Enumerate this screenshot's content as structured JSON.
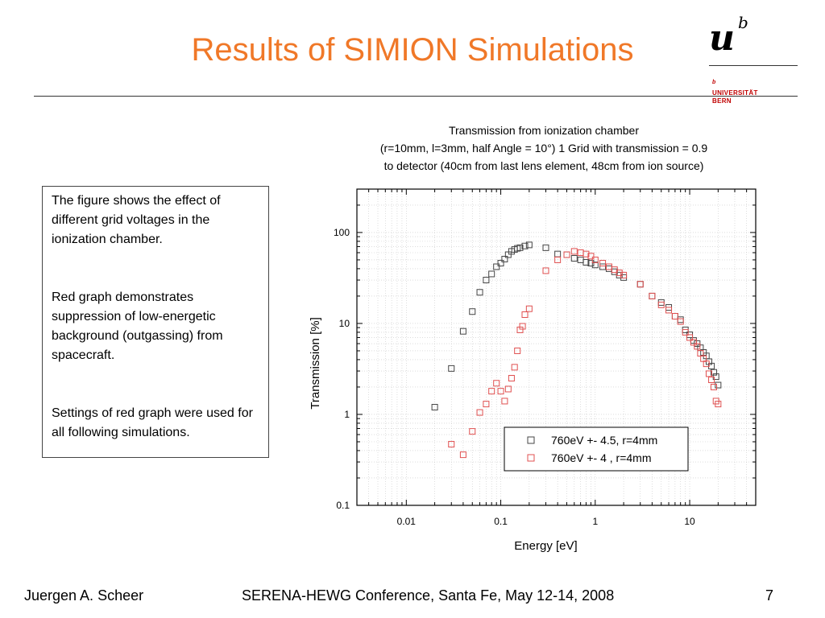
{
  "slide": {
    "title": "Results of SIMION Simulations"
  },
  "logo": {
    "mark_u": "u",
    "mark_b": "b",
    "superscript": "b",
    "line1": "UNIVERSITÄT",
    "line2": "BERN",
    "colors": {
      "text": "#c00000"
    }
  },
  "textbox": {
    "paragraphs": [
      "The figure shows the effect of different grid voltages in the ionization chamber.",
      "Red graph demonstrates suppression of low-energetic background (outgassing) from spacecraft.",
      "Settings of red graph were used for all following simulations."
    ]
  },
  "footer": {
    "author": "Juergen A. Scheer",
    "conference": "SERENA-HEWG Conference, Santa Fe, May 12-14, 2008",
    "page": "7"
  },
  "colors": {
    "title": "#f07828",
    "series1": "#444444",
    "series2": "#e05050"
  },
  "chart_data": {
    "type": "scatter",
    "title_lines": [
      "Transmission from ionization chamber",
      "(r=10mm, l=3mm, half Angle = 10°) 1 Grid with transmission = 0.9",
      "to detector (40cm from last lens element, 48cm from ion source)"
    ],
    "xlabel": "Energy [eV]",
    "ylabel": "Transmission [%]",
    "xscale": "log",
    "yscale": "log",
    "xlim": [
      0.003,
      50
    ],
    "ylim": [
      0.1,
      300
    ],
    "xticks": [
      "0.01",
      "0.1",
      "1",
      "10"
    ],
    "yticks": [
      "0.1",
      "1",
      "10",
      "100"
    ],
    "grid": true,
    "legend_position": "bottom-right",
    "series": [
      {
        "name": "760eV +- 4.5, r=4mm",
        "color": "#444444",
        "marker": "open-square",
        "points": [
          [
            0.02,
            1.2
          ],
          [
            0.03,
            3.2
          ],
          [
            0.04,
            8.2
          ],
          [
            0.05,
            13.5
          ],
          [
            0.06,
            22
          ],
          [
            0.07,
            30
          ],
          [
            0.08,
            35
          ],
          [
            0.09,
            42
          ],
          [
            0.1,
            46
          ],
          [
            0.11,
            51
          ],
          [
            0.12,
            57
          ],
          [
            0.13,
            62
          ],
          [
            0.14,
            65
          ],
          [
            0.15,
            67
          ],
          [
            0.16,
            68
          ],
          [
            0.18,
            71
          ],
          [
            0.2,
            73
          ],
          [
            0.3,
            68
          ],
          [
            0.4,
            58
          ],
          [
            0.5,
            57
          ],
          [
            0.6,
            52
          ],
          [
            0.7,
            50
          ],
          [
            0.8,
            47
          ],
          [
            0.9,
            46
          ],
          [
            1.0,
            44
          ],
          [
            1.2,
            42
          ],
          [
            1.4,
            40
          ],
          [
            1.6,
            37
          ],
          [
            1.8,
            34
          ],
          [
            2.0,
            32
          ],
          [
            3.0,
            27
          ],
          [
            4.0,
            20
          ],
          [
            5.0,
            17
          ],
          [
            6.0,
            15
          ],
          [
            7.0,
            12
          ],
          [
            8.0,
            11
          ],
          [
            9.0,
            8.5
          ],
          [
            10,
            7.5
          ],
          [
            11,
            6.5
          ],
          [
            12,
            6.0
          ],
          [
            13,
            5.4
          ],
          [
            14,
            4.8
          ],
          [
            15,
            4.4
          ],
          [
            16,
            3.8
          ],
          [
            17,
            3.4
          ],
          [
            18,
            2.9
          ],
          [
            19,
            2.6
          ],
          [
            20,
            2.1
          ]
        ]
      },
      {
        "name": "760eV +- 4  , r=4mm",
        "color": "#e05050",
        "marker": "open-square",
        "points": [
          [
            0.03,
            0.47
          ],
          [
            0.04,
            0.36
          ],
          [
            0.05,
            0.65
          ],
          [
            0.06,
            1.05
          ],
          [
            0.07,
            1.3
          ],
          [
            0.08,
            1.8
          ],
          [
            0.09,
            2.2
          ],
          [
            0.1,
            1.8
          ],
          [
            0.11,
            1.4
          ],
          [
            0.12,
            1.9
          ],
          [
            0.13,
            2.5
          ],
          [
            0.14,
            3.3
          ],
          [
            0.15,
            5.0
          ],
          [
            0.16,
            8.5
          ],
          [
            0.17,
            9.3
          ],
          [
            0.18,
            12.5
          ],
          [
            0.2,
            14.5
          ],
          [
            0.3,
            38
          ],
          [
            0.4,
            50
          ],
          [
            0.5,
            57
          ],
          [
            0.6,
            62
          ],
          [
            0.7,
            60
          ],
          [
            0.8,
            58
          ],
          [
            0.9,
            55
          ],
          [
            1.0,
            50
          ],
          [
            1.2,
            46
          ],
          [
            1.4,
            42
          ],
          [
            1.6,
            39
          ],
          [
            1.8,
            36
          ],
          [
            2.0,
            34
          ],
          [
            3.0,
            27
          ],
          [
            4.0,
            20
          ],
          [
            5.0,
            16
          ],
          [
            6.0,
            14
          ],
          [
            7.0,
            12
          ],
          [
            8.0,
            10.5
          ],
          [
            9.0,
            8.0
          ],
          [
            10,
            7.0
          ],
          [
            11,
            6.2
          ],
          [
            12,
            5.6
          ],
          [
            13,
            4.7
          ],
          [
            14,
            4.1
          ],
          [
            15,
            3.6
          ],
          [
            16,
            2.8
          ],
          [
            17,
            2.4
          ],
          [
            18,
            2.0
          ],
          [
            19,
            1.4
          ],
          [
            20,
            1.3
          ]
        ]
      }
    ]
  }
}
